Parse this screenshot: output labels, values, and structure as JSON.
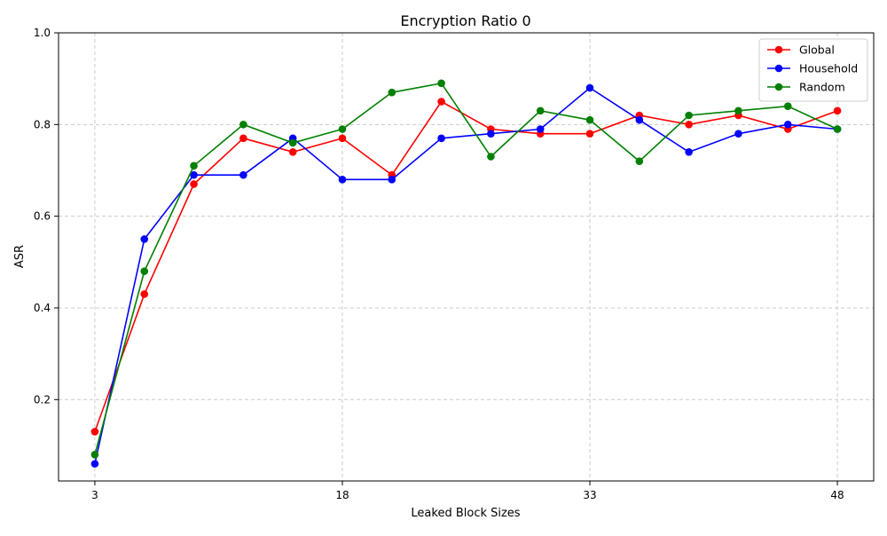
{
  "chart_data": {
    "type": "line",
    "title": "Encryption Ratio 0",
    "xlabel": "Leaked Block Sizes",
    "ylabel": "ASR",
    "x": [
      3,
      6,
      9,
      12,
      15,
      18,
      21,
      24,
      27,
      30,
      33,
      36,
      39,
      42,
      45,
      48
    ],
    "xticks": [
      3,
      18,
      33,
      48
    ],
    "xlim": [
      0.8,
      50.2
    ],
    "yticks": [
      0.2,
      0.4,
      0.6,
      0.8,
      1.0
    ],
    "ylim": [
      0.0,
      1.0
    ],
    "grid": true,
    "legend_position": "top-right",
    "series": [
      {
        "name": "Global",
        "color": "#ff0000",
        "values": [
          0.13,
          0.43,
          0.67,
          0.77,
          0.74,
          0.77,
          0.69,
          0.85,
          0.79,
          0.78,
          0.78,
          0.82,
          0.8,
          0.82,
          0.79,
          0.83
        ]
      },
      {
        "name": "Household",
        "color": "#0000ff",
        "values": [
          0.06,
          0.55,
          0.69,
          0.69,
          0.77,
          0.68,
          0.68,
          0.77,
          0.78,
          0.79,
          0.88,
          0.81,
          0.74,
          0.78,
          0.8,
          0.79
        ]
      },
      {
        "name": "Random",
        "color": "#008000",
        "values": [
          0.08,
          0.48,
          0.71,
          0.8,
          0.76,
          0.79,
          0.87,
          0.89,
          0.73,
          0.83,
          0.81,
          0.72,
          0.82,
          0.83,
          0.84,
          0.79
        ]
      }
    ]
  }
}
